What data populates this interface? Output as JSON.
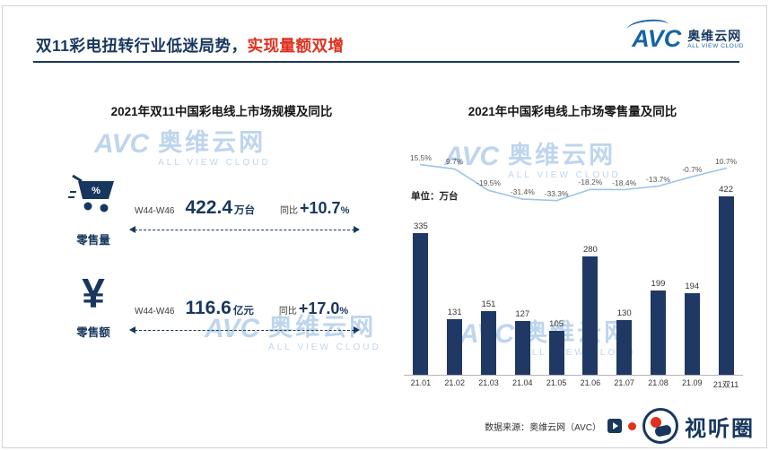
{
  "colors": {
    "navy": "#17375E",
    "bar_blue": "#1F3864",
    "accent_red": "#E0301E",
    "line_blue": "#9DC3E6",
    "watermark_blue": "#AECBEA"
  },
  "header": {
    "title_main": "双11彩电扭转行业低迷局势，",
    "title_accent": "实现量额双增",
    "logo": {
      "mark": "AVC",
      "name": "奥维云网",
      "subtitle": "ALL VIEW CLOUD"
    }
  },
  "left_panel": {
    "title": "2021年双11中国彩电线上市场规模及同比",
    "rows": [
      {
        "label": "零售量",
        "icon_badge": "%",
        "period": "W44-W46",
        "value": "422.4",
        "unit": "万台",
        "yoy_label": "同比",
        "yoy_value": "+10.7",
        "yoy_unit": "%"
      },
      {
        "label": "零售额",
        "icon_glyph": "¥",
        "period": "W44-W46",
        "value": "116.6",
        "unit": "亿元",
        "yoy_label": "同比",
        "yoy_value": "+17.0",
        "yoy_unit": "%"
      }
    ]
  },
  "right_panel": {
    "title": "2021年中国彩电线上市场零售量及同比",
    "unit_label": "单位：万台"
  },
  "chart_data": {
    "type": "bar",
    "title": "2021年中国彩电线上市场零售量及同比",
    "categories": [
      "21.01",
      "21.02",
      "21.03",
      "21.04",
      "21.05",
      "21.06",
      "21.07",
      "21.08",
      "21.09",
      "21双11"
    ],
    "series": [
      {
        "name": "零售量",
        "type": "bar",
        "values": [
          335,
          131,
          151,
          127,
          105,
          280,
          130,
          199,
          194,
          422
        ]
      },
      {
        "name": "同比",
        "type": "line",
        "values": [
          15.5,
          9.7,
          -19.5,
          -31.4,
          -33.3,
          -18.2,
          -18.4,
          -13.7,
          -0.7,
          10.7
        ]
      }
    ],
    "unit": "万台",
    "ylim": [
      0,
      450
    ],
    "grid": false,
    "legend_position": "none"
  },
  "watermark": {
    "mark": "AVC",
    "name": "奥维云网",
    "subtitle": "ALL VIEW CLOUD"
  },
  "footer": {
    "source": "数据来源：奥维云网（AVC）",
    "badge_text": "视听圈"
  }
}
